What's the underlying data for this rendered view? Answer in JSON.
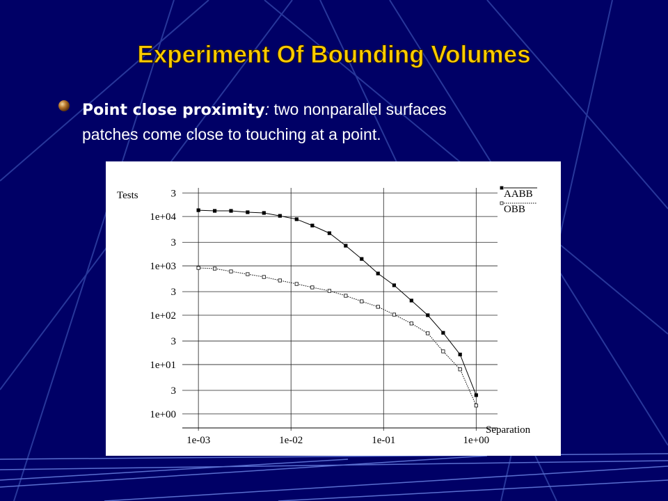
{
  "slide": {
    "title": "Experiment Of Bounding Volumes",
    "bullet": {
      "term": "Point close proximity",
      "punct": ":",
      "lines": [
        "two nonparallel surfaces",
        "patches come close to touching at a point."
      ]
    }
  },
  "chart_data": {
    "type": "line",
    "log_x": true,
    "log_y": true,
    "grid": true,
    "legend": "upper right",
    "ylabel": "Tests",
    "xlabel": "Separation",
    "x": [
      0.001,
      0.0015,
      0.00225,
      0.0034,
      0.0051,
      0.0076,
      0.0115,
      0.017,
      0.026,
      0.039,
      0.058,
      0.087,
      0.13,
      0.2,
      0.3,
      0.44,
      0.67,
      1
    ],
    "series": [
      {
        "name": "AABB",
        "color": "#000000",
        "style": "solid",
        "marker": "filled",
        "values": [
          13400,
          13000,
          13000,
          12200,
          11800,
          10300,
          8800,
          6560,
          4590,
          2560,
          1380,
          700,
          404,
          198,
          100,
          44,
          16,
          2.4
        ]
      },
      {
        "name": "OBB",
        "color": "#000000",
        "style": "dotted",
        "marker": "open",
        "values": [
          908,
          879,
          771,
          678,
          595,
          506,
          430,
          366,
          311,
          248,
          191,
          148,
          103,
          68,
          43,
          18.5,
          8,
          1.48
        ]
      }
    ],
    "xlim": [
      0.00067,
      1.7
    ],
    "ylim": [
      0.52,
      38000
    ],
    "xticks": [
      {
        "value": 0.001,
        "label": "1e-03"
      },
      {
        "value": 0.01,
        "label": "1e-02"
      },
      {
        "value": 0.1,
        "label": "1e-01"
      },
      {
        "value": 1,
        "label": "1e+00"
      }
    ],
    "yticks": [
      {
        "value": 1,
        "label": "1e+00"
      },
      3,
      {
        "value": 10,
        "label": "1e+01"
      },
      {
        "value": 30,
        "label": "3"
      },
      {
        "value": 100,
        "label": "1e+02"
      },
      {
        "value": 300,
        "label": "3"
      },
      {
        "value": 1000,
        "label": "1e+03"
      },
      {
        "value": 3000,
        "label": "3"
      },
      {
        "value": 10000,
        "label": "1e+04"
      },
      {
        "value": 30000,
        "label": "3"
      }
    ]
  }
}
